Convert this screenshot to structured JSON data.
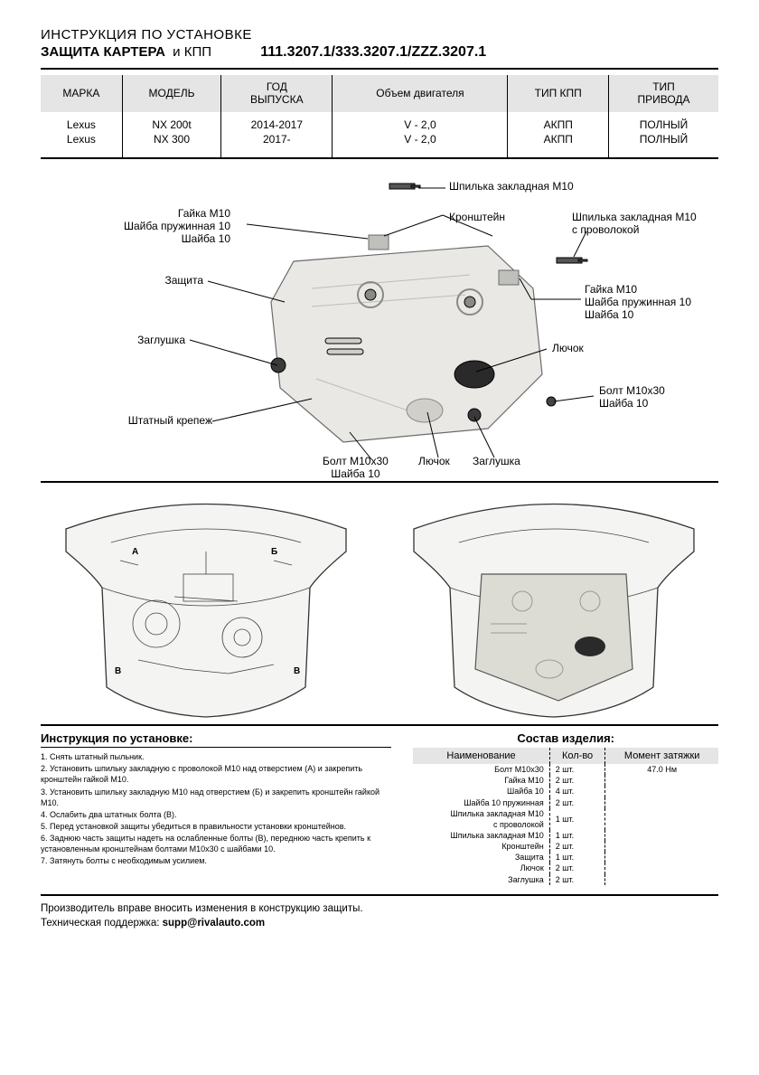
{
  "header": {
    "line1": "ИНСТРУКЦИЯ ПО УСТАНОВКЕ",
    "title_bold": "ЗАЩИТА КАРТЕРА",
    "title_and": "и КПП",
    "partno": "111.3207.1/333.3207.1/ZZZ.3207.1"
  },
  "spec_table": {
    "columns": [
      "МАРКА",
      "МОДЕЛЬ",
      "ГОД\nВЫПУСКА",
      "Объем двигателя",
      "ТИП КПП",
      "ТИП\nПРИВОДА"
    ],
    "rows": [
      [
        "Lexus",
        "NX 200t",
        "2014-2017",
        "V - 2,0",
        "АКПП",
        "ПОЛНЫЙ"
      ],
      [
        "Lexus",
        "NX 300",
        "2017-",
        "V - 2,0",
        "АКПП",
        "ПОЛНЫЙ"
      ]
    ],
    "header_bg": "#e5e5e5"
  },
  "callouts": {
    "top_stud": "Шпилька закладная M10",
    "top_right_stud": "Шпилька закладная М10\nс проволокой",
    "bracket": "Кронштейн",
    "nut_washer_left": "Гайка М10\nШайба пружинная 10\nШайба 10",
    "nut_washer_right": "Гайка М10\nШайба пружинная 10\nШайба 10",
    "protection": "Защита",
    "plug_left": "Заглушка",
    "plug_bottom": "Заглушка",
    "hatch_right": "Лючок",
    "hatch_bottom": "Лючок",
    "bolt_bottom": "Болт М10х30\nШайба 10",
    "bolt_right": "Болт М10х30\nШайба 10",
    "stock_mount": "Штатный крепеж"
  },
  "instructions": {
    "title": "Инструкция по установке:",
    "items": [
      "1. Снять штатный пыльник.",
      "2. Установить шпильку закладную с проволокой М10  над отверстием (А) и закрепить кронштейн гайкой М10.",
      "3. Установить шпильку закладную М10  над отверстием (Б) и закрепить кронштейн гайкой М10.",
      "4. Ослабить два штатных болта (В).",
      "5. Перед установкой защиты убедиться в правильности установки кронштейнов.",
      "6. Заднюю часть защиты надеть на ослабленные болты (В), переднюю часть крепить к установленным кронштейнам болтами М10х30 с шайбами 10.",
      "7. Затянуть болты с необходимым усилием."
    ]
  },
  "bom": {
    "title": "Состав изделия:",
    "columns": [
      "Наименование",
      "Кол-во",
      "Момент затяжки"
    ],
    "rows": [
      [
        "Болт М10х30",
        "2 шт.",
        "47.0 Нм"
      ],
      [
        "Гайка М10",
        "2 шт.",
        ""
      ],
      [
        "Шайба 10",
        "4 шт.",
        ""
      ],
      [
        "Шайба 10 пружинная",
        "2 шт.",
        ""
      ],
      [
        "Шпилька закладная М10\nс проволокой",
        "1 шт.",
        ""
      ],
      [
        "Шпилька закладная М10",
        "1 шт.",
        ""
      ],
      [
        "Кронштейн",
        "2 шт.",
        ""
      ],
      [
        "Защита",
        "1 шт.",
        ""
      ],
      [
        "Лючок",
        "2 шт.",
        ""
      ],
      [
        "Заглушка",
        "2 шт.",
        ""
      ]
    ]
  },
  "footer": {
    "line1": "Производитель вправе вносить изменения в конструкцию защиты.",
    "line2_label": "Техническая поддержка: ",
    "line2_value": "supp@rivalauto.com"
  },
  "colors": {
    "plate_fill": "#e9e8e4",
    "plate_stroke": "#6b6b6b",
    "header_bg": "#e5e5e5"
  }
}
